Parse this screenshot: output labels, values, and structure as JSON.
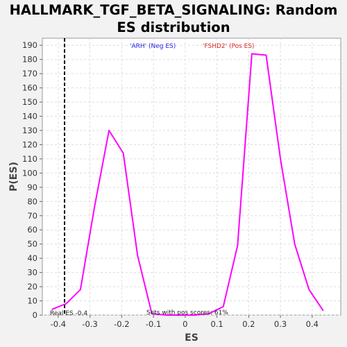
{
  "chart_data": {
    "type": "line",
    "title": "HALLMARK_TGF_BETA_SIGNALING: Random ES distribution",
    "xlabel": "ES",
    "ylabel": "P(ES)",
    "xlim": [
      -0.45,
      0.49
    ],
    "ylim": [
      0,
      195
    ],
    "xticks": [
      -0.4,
      -0.3,
      -0.2,
      -0.1,
      0.0,
      0.1,
      0.2,
      0.3,
      0.4
    ],
    "xtick_labels": [
      "-0.4",
      "-0.3",
      "-0.2",
      "-0.1",
      "0",
      "0.1",
      "0.2",
      "0.3",
      "0.4"
    ],
    "yticks": [
      0,
      10,
      20,
      30,
      40,
      50,
      60,
      70,
      80,
      90,
      100,
      110,
      120,
      130,
      140,
      150,
      160,
      170,
      180,
      190
    ],
    "grid": true,
    "series": [
      {
        "color": "#ff00ff",
        "x": [
          -0.42,
          -0.375,
          -0.33,
          -0.285,
          -0.24,
          -0.195,
          -0.15,
          -0.105,
          -0.06,
          -0.015,
          0.03,
          0.075,
          0.12,
          0.165,
          0.21,
          0.255,
          0.3,
          0.345,
          0.39,
          0.435
        ],
        "y": [
          4,
          8,
          18,
          77,
          130,
          114,
          42,
          1,
          0,
          0,
          0,
          1,
          6,
          49,
          184,
          183,
          110,
          50,
          18,
          3
        ]
      }
    ],
    "real_es": -0.38,
    "annotations": {
      "neg_label": "'ARH' (Neg ES)",
      "pos_label": "'FSHD2' (Pos ES)",
      "real_es_label": "Real ES -0.4",
      "pos_scores_label": "Sets with pos scores: 61%"
    },
    "colors": {
      "neg": "#2020e0",
      "pos": "#e02020",
      "line": "#ff00ff"
    }
  }
}
